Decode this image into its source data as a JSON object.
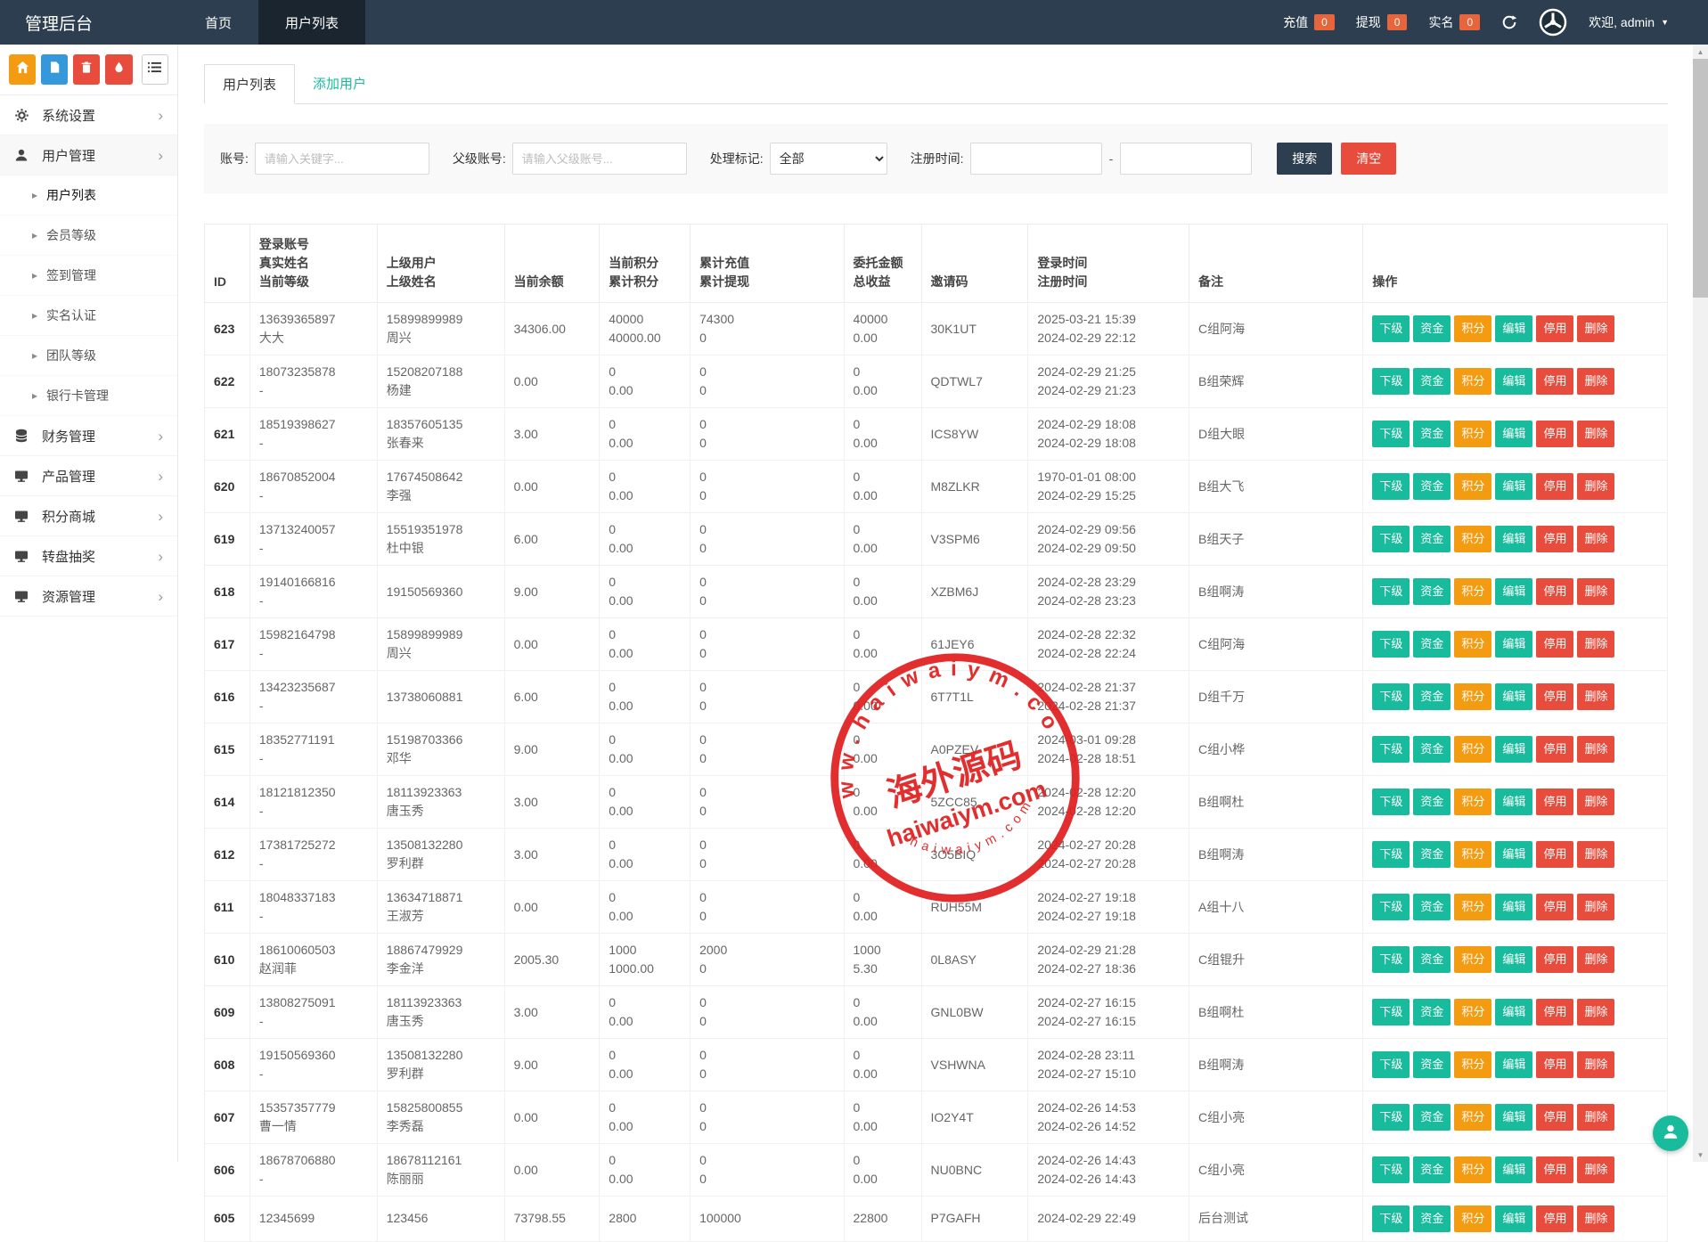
{
  "navbar": {
    "brand": "管理后台",
    "menu": [
      {
        "label": "首页",
        "active": false
      },
      {
        "label": "用户列表",
        "active": true
      }
    ],
    "stats": [
      {
        "label": "充值",
        "count": "0"
      },
      {
        "label": "提现",
        "count": "0"
      },
      {
        "label": "实名",
        "count": "0"
      }
    ],
    "welcome": "欢迎, admin"
  },
  "sidebar": {
    "shortcut_icons": [
      "home-icon",
      "file-icon",
      "trash-icon",
      "droplet-icon",
      "list-icon"
    ],
    "items": [
      {
        "key": "system-settings",
        "label": "系统设置",
        "type": "parent",
        "icon": "gear-icon"
      },
      {
        "key": "user-management",
        "label": "用户管理",
        "type": "parent",
        "icon": "user-icon",
        "expanded": true
      },
      {
        "key": "user-list",
        "label": "用户列表",
        "type": "sub",
        "active": true
      },
      {
        "key": "member-level",
        "label": "会员等级",
        "type": "sub"
      },
      {
        "key": "signin-management",
        "label": "签到管理",
        "type": "sub"
      },
      {
        "key": "realname-auth",
        "label": "实名认证",
        "type": "sub"
      },
      {
        "key": "team-level",
        "label": "团队等级",
        "type": "sub"
      },
      {
        "key": "bankcard-management",
        "label": "银行卡管理",
        "type": "sub"
      },
      {
        "key": "finance-management",
        "label": "财务管理",
        "type": "parent",
        "icon": "database-icon"
      },
      {
        "key": "product-management",
        "label": "产品管理",
        "type": "parent",
        "icon": "monitor-icon"
      },
      {
        "key": "points-mall",
        "label": "积分商城",
        "type": "parent",
        "icon": "monitor-icon"
      },
      {
        "key": "wheel-lottery",
        "label": "转盘抽奖",
        "type": "parent",
        "icon": "monitor-icon"
      },
      {
        "key": "resource-management",
        "label": "资源管理",
        "type": "parent",
        "icon": "monitor-icon"
      }
    ]
  },
  "tabs": [
    {
      "label": "用户列表",
      "active": true
    },
    {
      "label": "添加用户",
      "active": false
    }
  ],
  "filters": {
    "account_label": "账号:",
    "account_placeholder": "请输入关键字...",
    "parent_label": "父级账号:",
    "parent_placeholder": "请输入父级账号...",
    "flag_label": "处理标记:",
    "flag_value": "全部",
    "time_label": "注册时间:",
    "range_separator": "-",
    "search_label": "搜索",
    "clear_label": "清空"
  },
  "table": {
    "headers": [
      "ID",
      "登录账号\n真实姓名\n当前等级",
      "上级用户\n上级姓名",
      "当前余额",
      "当前积分\n累计积分",
      "累计充值\n累计提现",
      "委托金额\n总收益",
      "邀请码",
      "登录时间\n注册时间",
      "备注",
      "操作"
    ],
    "actions": [
      {
        "key": "subordinate",
        "label": "下级",
        "color": "#18bc9c"
      },
      {
        "key": "funds",
        "label": "资金",
        "color": "#18bc9c"
      },
      {
        "key": "points",
        "label": "积分",
        "color": "#f39c12"
      },
      {
        "key": "edit",
        "label": "编辑",
        "color": "#18bc9c"
      },
      {
        "key": "disable",
        "label": "停用",
        "color": "#e74c3c"
      },
      {
        "key": "delete",
        "label": "删除",
        "color": "#e74c3c"
      }
    ],
    "users": [
      {
        "id": "623",
        "account": "13639365897",
        "realname": "大大",
        "parent_account": "15899899989",
        "parent_name": "周兴",
        "balance": "34306.00",
        "points": "40000",
        "points_total": "40000.00",
        "recharge": "74300",
        "withdraw": "0",
        "entrust": "40000",
        "profit": "0.00",
        "invite_code": "30K1UT",
        "login_time": "2025-03-21 15:39",
        "register_time": "2024-02-29 22:12",
        "remark": "C组阿海"
      },
      {
        "id": "622",
        "account": "18073235878",
        "realname": "-",
        "parent_account": "15208207188",
        "parent_name": "杨建",
        "balance": "0.00",
        "points": "0",
        "points_total": "0.00",
        "recharge": "0",
        "withdraw": "0",
        "entrust": "0",
        "profit": "0.00",
        "invite_code": "QDTWL7",
        "login_time": "2024-02-29 21:25",
        "register_time": "2024-02-29 21:23",
        "remark": "B组荣辉"
      },
      {
        "id": "621",
        "account": "18519398627",
        "realname": "-",
        "parent_account": "18357605135",
        "parent_name": "张春来",
        "balance": "3.00",
        "points": "0",
        "points_total": "0.00",
        "recharge": "0",
        "withdraw": "0",
        "entrust": "0",
        "profit": "0.00",
        "invite_code": "ICS8YW",
        "login_time": "2024-02-29 18:08",
        "register_time": "2024-02-29 18:08",
        "remark": "D组大眼"
      },
      {
        "id": "620",
        "account": "18670852004",
        "realname": "-",
        "parent_account": "17674508642",
        "parent_name": "李强",
        "balance": "0.00",
        "points": "0",
        "points_total": "0.00",
        "recharge": "0",
        "withdraw": "0",
        "entrust": "0",
        "profit": "0.00",
        "invite_code": "M8ZLKR",
        "login_time": "1970-01-01 08:00",
        "register_time": "2024-02-29 15:25",
        "remark": "B组大飞"
      },
      {
        "id": "619",
        "account": "13713240057",
        "realname": "-",
        "parent_account": "15519351978",
        "parent_name": "杜中银",
        "balance": "6.00",
        "points": "0",
        "points_total": "0.00",
        "recharge": "0",
        "withdraw": "0",
        "entrust": "0",
        "profit": "0.00",
        "invite_code": "V3SPM6",
        "login_time": "2024-02-29 09:56",
        "register_time": "2024-02-29 09:50",
        "remark": "B组天子"
      },
      {
        "id": "618",
        "account": "19140166816",
        "realname": "-",
        "parent_account": "19150569360",
        "parent_name": "",
        "balance": "9.00",
        "points": "0",
        "points_total": "0.00",
        "recharge": "0",
        "withdraw": "0",
        "entrust": "0",
        "profit": "0.00",
        "invite_code": "XZBM6J",
        "login_time": "2024-02-28 23:29",
        "register_time": "2024-02-28 23:23",
        "remark": "B组啊涛"
      },
      {
        "id": "617",
        "account": "15982164798",
        "realname": "-",
        "parent_account": "15899899989",
        "parent_name": "周兴",
        "balance": "0.00",
        "points": "0",
        "points_total": "0.00",
        "recharge": "0",
        "withdraw": "0",
        "entrust": "0",
        "profit": "0.00",
        "invite_code": "61JEY6",
        "login_time": "2024-02-28 22:32",
        "register_time": "2024-02-28 22:24",
        "remark": "C组阿海"
      },
      {
        "id": "616",
        "account": "13423235687",
        "realname": "-",
        "parent_account": "13738060881",
        "parent_name": "",
        "balance": "6.00",
        "points": "0",
        "points_total": "0.00",
        "recharge": "0",
        "withdraw": "0",
        "entrust": "0",
        "profit": "0.00",
        "invite_code": "6T7T1L",
        "login_time": "2024-02-28 21:37",
        "register_time": "2024-02-28 21:37",
        "remark": "D组千万"
      },
      {
        "id": "615",
        "account": "18352771191",
        "realname": "-",
        "parent_account": "15198703366",
        "parent_name": "邓华",
        "balance": "9.00",
        "points": "0",
        "points_total": "0.00",
        "recharge": "0",
        "withdraw": "0",
        "entrust": "0",
        "profit": "0.00",
        "invite_code": "A0PZEV",
        "login_time": "2024-03-01 09:28",
        "register_time": "2024-02-28 18:51",
        "remark": "C组小桦"
      },
      {
        "id": "614",
        "account": "18121812350",
        "realname": "-",
        "parent_account": "18113923363",
        "parent_name": "唐玉秀",
        "balance": "3.00",
        "points": "0",
        "points_total": "0.00",
        "recharge": "0",
        "withdraw": "0",
        "entrust": "0",
        "profit": "0.00",
        "invite_code": "5ZCC85",
        "login_time": "2024-02-28 12:20",
        "register_time": "2024-02-28 12:20",
        "remark": "B组啊杜"
      },
      {
        "id": "612",
        "account": "17381725272",
        "realname": "-",
        "parent_account": "13508132280",
        "parent_name": "罗利群",
        "balance": "3.00",
        "points": "0",
        "points_total": "0.00",
        "recharge": "0",
        "withdraw": "0",
        "entrust": "0",
        "profit": "0.00",
        "invite_code": "3O5BIQ",
        "login_time": "2024-02-27 20:28",
        "register_time": "2024-02-27 20:28",
        "remark": "B组啊涛"
      },
      {
        "id": "611",
        "account": "18048337183",
        "realname": "-",
        "parent_account": "13634718871",
        "parent_name": "王淑芳",
        "balance": "0.00",
        "points": "0",
        "points_total": "0.00",
        "recharge": "0",
        "withdraw": "0",
        "entrust": "0",
        "profit": "0.00",
        "invite_code": "RUH55M",
        "login_time": "2024-02-27 19:18",
        "register_time": "2024-02-27 19:18",
        "remark": "A组十八"
      },
      {
        "id": "610",
        "account": "18610060503",
        "realname": "赵润菲",
        "parent_account": "18867479929",
        "parent_name": "李金洋",
        "balance": "2005.30",
        "points": "1000",
        "points_total": "1000.00",
        "recharge": "2000",
        "withdraw": "0",
        "entrust": "1000",
        "profit": "5.30",
        "invite_code": "0L8ASY",
        "login_time": "2024-02-29 21:28",
        "register_time": "2024-02-27 18:36",
        "remark": "C组锟升"
      },
      {
        "id": "609",
        "account": "13808275091",
        "realname": "-",
        "parent_account": "18113923363",
        "parent_name": "唐玉秀",
        "balance": "3.00",
        "points": "0",
        "points_total": "0.00",
        "recharge": "0",
        "withdraw": "0",
        "entrust": "0",
        "profit": "0.00",
        "invite_code": "GNL0BW",
        "login_time": "2024-02-27 16:15",
        "register_time": "2024-02-27 16:15",
        "remark": "B组啊杜"
      },
      {
        "id": "608",
        "account": "19150569360",
        "realname": "-",
        "parent_account": "13508132280",
        "parent_name": "罗利群",
        "balance": "9.00",
        "points": "0",
        "points_total": "0.00",
        "recharge": "0",
        "withdraw": "0",
        "entrust": "0",
        "profit": "0.00",
        "invite_code": "VSHWNA",
        "login_time": "2024-02-28 23:11",
        "register_time": "2024-02-27 15:10",
        "remark": "B组啊涛"
      },
      {
        "id": "607",
        "account": "15357357779",
        "realname": "曹一情",
        "parent_account": "15825800855",
        "parent_name": "李秀磊",
        "balance": "0.00",
        "points": "0",
        "points_total": "0.00",
        "recharge": "0",
        "withdraw": "0",
        "entrust": "0",
        "profit": "0.00",
        "invite_code": "IO2Y4T",
        "login_time": "2024-02-26 14:53",
        "register_time": "2024-02-26 14:52",
        "remark": "C组小亮"
      },
      {
        "id": "606",
        "account": "18678706880",
        "realname": "-",
        "parent_account": "18678112161",
        "parent_name": "陈丽丽",
        "balance": "0.00",
        "points": "0",
        "points_total": "0.00",
        "recharge": "0",
        "withdraw": "0",
        "entrust": "0",
        "profit": "0.00",
        "invite_code": "NU0BNC",
        "login_time": "2024-02-26 14:43",
        "register_time": "2024-02-26 14:43",
        "remark": "C组小亮"
      },
      {
        "id": "605",
        "account": "12345699",
        "realname": "",
        "parent_account": "123456",
        "parent_name": "",
        "balance": "73798.55",
        "points": "2800",
        "points_total": "",
        "recharge": "100000",
        "withdraw": "",
        "entrust": "22800",
        "profit": "",
        "invite_code": "P7GAFH",
        "login_time": "2024-02-29 22:49",
        "register_time": "",
        "remark": "后台测试"
      }
    ]
  },
  "watermark": {
    "top_arc": "w w w . h a i w a i y m . c o m",
    "center": "海外源码",
    "sub": "haiwaiym.com",
    "bottom_arc": "h a i w a i y m . c o m"
  },
  "colors": {
    "navbar_bg": "#2c3e50",
    "navbar_active": "#1a2530",
    "badge": "#e8653b",
    "accent_teal": "#18bc9c",
    "warning_orange": "#f39c12",
    "danger_red": "#e74c3c",
    "search_button": "#2c3e50",
    "stamp_red": "#e01f1f"
  }
}
